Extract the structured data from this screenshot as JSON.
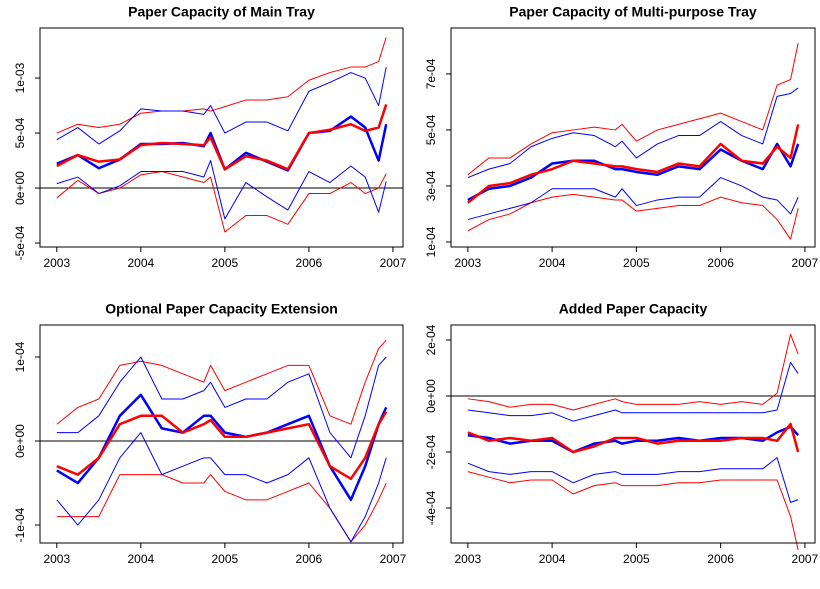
{
  "chart_data": [
    {
      "type": "line",
      "title": "Paper Capacity of Main Tray",
      "x": [
        2003,
        2003.25,
        2003.5,
        2003.75,
        2004,
        2004.25,
        2004.5,
        2004.75,
        2004.83,
        2005,
        2005.25,
        2005.5,
        2005.75,
        2006,
        2006.25,
        2006.5,
        2006.67,
        2006.83,
        2006.92
      ],
      "xlim": [
        2002.8,
        2007.12
      ],
      "xticks": [
        2003,
        2004,
        2005,
        2006,
        2007
      ],
      "ylim": [
        -0.000536,
        0.001455
      ],
      "yticks": [
        {
          "value": -0.0005,
          "label": "-5e-04"
        },
        {
          "value": 0,
          "label": "0e+00"
        },
        {
          "value": 0.0005,
          "label": "5e-04"
        },
        {
          "value": 0.001,
          "label": "1e-03"
        }
      ],
      "hline": 0,
      "series": [
        {
          "color": "#ff0000",
          "linewidth": 1,
          "values": [
            0.0005,
            0.00058,
            0.00055,
            0.00058,
            0.00068,
            0.0007,
            0.0007,
            0.00072,
            0.0007,
            0.00074,
            0.0008,
            0.0008,
            0.00083,
            0.00098,
            0.00105,
            0.0011,
            0.0011,
            0.00115,
            0.00137
          ]
        },
        {
          "color": "#ff0000",
          "linewidth": 1,
          "values": [
            -9e-05,
            7e-05,
            -5e-05,
            0,
            0.00012,
            0.00015,
            0.0001,
            5e-05,
            0.0001,
            -0.0004,
            -0.00025,
            -0.00025,
            -0.00033,
            -5e-05,
            -5e-05,
            5e-05,
            -5e-05,
            0,
            0.00013
          ]
        },
        {
          "color": "#0000ff",
          "linewidth": 1,
          "values": [
            0.00044,
            0.00055,
            0.0004,
            0.00052,
            0.00072,
            0.0007,
            0.0007,
            0.00067,
            0.00075,
            0.0005,
            0.0006,
            0.0006,
            0.00052,
            0.00088,
            0.00096,
            0.00105,
            0.001,
            0.00075,
            0.0011
          ]
        },
        {
          "color": "#0000ff",
          "linewidth": 1,
          "values": [
            4e-05,
            0.0001,
            -5e-05,
            2e-05,
            0.00015,
            0.00015,
            0.00015,
            0.0001,
            0.00025,
            -0.00028,
            5e-05,
            -8e-05,
            -0.0002,
            0.00015,
            5e-05,
            0.0002,
            0.0001,
            -0.00022,
            6e-05
          ]
        },
        {
          "color": "#0000ff",
          "linewidth": 2.5,
          "values": [
            0.00022,
            0.0003,
            0.00018,
            0.00026,
            0.0004,
            0.0004,
            0.00041,
            0.00038,
            0.0005,
            0.00017,
            0.00032,
            0.00024,
            0.00016,
            0.0005,
            0.00052,
            0.00065,
            0.00055,
            0.00025,
            0.00058
          ]
        },
        {
          "color": "#ff0000",
          "linewidth": 2.5,
          "values": [
            0.0002,
            0.0003,
            0.00024,
            0.00026,
            0.00039,
            0.00041,
            0.0004,
            0.00039,
            0.00046,
            0.00017,
            0.00029,
            0.00025,
            0.00017,
            0.0005,
            0.00053,
            0.00058,
            0.00052,
            0.00055,
            0.00076
          ]
        }
      ]
    },
    {
      "type": "line",
      "title": "Paper Capacity of Multi-purpose Tray",
      "x": [
        2003,
        2003.25,
        2003.5,
        2003.75,
        2004,
        2004.25,
        2004.5,
        2004.75,
        2004.83,
        2005,
        2005.25,
        2005.5,
        2005.75,
        2006,
        2006.25,
        2006.5,
        2006.67,
        2006.83,
        2006.92
      ],
      "xlim": [
        2002.8,
        2007.12
      ],
      "xticks": [
        2003,
        2004,
        2005,
        2006,
        2007
      ],
      "ylim": [
        8.2e-05,
        0.000864
      ],
      "yticks": [
        {
          "value": 0.0001,
          "label": "1e-04"
        },
        {
          "value": 0.0003,
          "label": "3e-04"
        },
        {
          "value": 0.0005,
          "label": "5e-04"
        },
        {
          "value": 0.0007,
          "label": "7e-04"
        }
      ],
      "series": [
        {
          "color": "#ff0000",
          "linewidth": 1,
          "values": [
            0.00034,
            0.0004,
            0.0004,
            0.00045,
            0.00049,
            0.0005,
            0.00051,
            0.0005,
            0.00052,
            0.00046,
            0.0005,
            0.00052,
            0.00054,
            0.00056,
            0.00053,
            0.0005,
            0.00066,
            0.00068,
            0.00081
          ]
        },
        {
          "color": "#ff0000",
          "linewidth": 1,
          "values": [
            0.00014,
            0.00018,
            0.0002,
            0.00024,
            0.00026,
            0.00027,
            0.00026,
            0.00025,
            0.00025,
            0.00021,
            0.00022,
            0.00023,
            0.00023,
            0.00026,
            0.00024,
            0.00023,
            0.00018,
            0.00011,
            0.00022
          ]
        },
        {
          "color": "#0000ff",
          "linewidth": 1,
          "values": [
            0.00033,
            0.00036,
            0.00038,
            0.00044,
            0.00047,
            0.00049,
            0.00048,
            0.00044,
            0.00046,
            0.0004,
            0.00045,
            0.00048,
            0.00048,
            0.00053,
            0.00048,
            0.00045,
            0.00062,
            0.00063,
            0.00065
          ]
        },
        {
          "color": "#0000ff",
          "linewidth": 1,
          "values": [
            0.00018,
            0.0002,
            0.00022,
            0.00024,
            0.00029,
            0.00029,
            0.00029,
            0.00026,
            0.00029,
            0.00023,
            0.00025,
            0.00026,
            0.00026,
            0.00033,
            0.0003,
            0.00026,
            0.00025,
            0.0002,
            0.00026
          ]
        },
        {
          "color": "#0000ff",
          "linewidth": 2.5,
          "values": [
            0.00025,
            0.00029,
            0.0003,
            0.00033,
            0.00038,
            0.00039,
            0.00039,
            0.00036,
            0.00036,
            0.00035,
            0.00034,
            0.00037,
            0.00036,
            0.00043,
            0.00039,
            0.00036,
            0.00045,
            0.00037,
            0.00045
          ]
        },
        {
          "color": "#ff0000",
          "linewidth": 2.5,
          "values": [
            0.00024,
            0.0003,
            0.00031,
            0.00034,
            0.00036,
            0.00039,
            0.00038,
            0.00037,
            0.00037,
            0.00036,
            0.00035,
            0.00038,
            0.00037,
            0.00045,
            0.00039,
            0.00038,
            0.00044,
            0.0004,
            0.00052
          ]
        }
      ]
    },
    {
      "type": "line",
      "title": "Optional Paper Capacity Extension",
      "x": [
        2003,
        2003.25,
        2003.5,
        2003.75,
        2004,
        2004.25,
        2004.5,
        2004.75,
        2004.83,
        2005,
        2005.25,
        2005.5,
        2005.75,
        2006,
        2006.25,
        2006.5,
        2006.67,
        2006.83,
        2006.92
      ],
      "xlim": [
        2002.8,
        2007.12
      ],
      "xticks": [
        2003,
        2004,
        2005,
        2006,
        2007
      ],
      "ylim": [
        -0.0001214,
        0.0001381
      ],
      "yticks": [
        {
          "value": -0.0001,
          "label": "-1e-04"
        },
        {
          "value": 0,
          "label": "0e+00"
        },
        {
          "value": 0.0001,
          "label": "1e-04"
        }
      ],
      "hline": 0,
      "series": [
        {
          "color": "#ff0000",
          "linewidth": 1,
          "values": [
            2e-05,
            4e-05,
            5e-05,
            9e-05,
            9.5e-05,
            9e-05,
            8e-05,
            7e-05,
            9e-05,
            6e-05,
            7e-05,
            8e-05,
            9e-05,
            9e-05,
            3e-05,
            2e-05,
            7e-05,
            0.00011,
            0.00012
          ]
        },
        {
          "color": "#ff0000",
          "linewidth": 1,
          "values": [
            -9e-05,
            -9e-05,
            -9e-05,
            -4e-05,
            -4e-05,
            -4e-05,
            -5e-05,
            -5e-05,
            -4e-05,
            -6e-05,
            -7e-05,
            -7e-05,
            -6e-05,
            -5e-05,
            -8e-05,
            -0.00012,
            -0.0001,
            -7e-05,
            -5e-05
          ]
        },
        {
          "color": "#0000ff",
          "linewidth": 1,
          "values": [
            1e-05,
            1e-05,
            3e-05,
            7e-05,
            0.0001,
            5e-05,
            5e-05,
            6e-05,
            7e-05,
            4e-05,
            5e-05,
            5e-05,
            7e-05,
            8e-05,
            1e-05,
            -2e-05,
            3e-05,
            9e-05,
            0.0001
          ]
        },
        {
          "color": "#0000ff",
          "linewidth": 1,
          "values": [
            -7e-05,
            -0.0001,
            -7e-05,
            -2e-05,
            1e-05,
            -4e-05,
            -3e-05,
            -2e-05,
            -2e-05,
            -4e-05,
            -4e-05,
            -5e-05,
            -4e-05,
            -2e-05,
            -8e-05,
            -0.00012,
            -9e-05,
            -5e-05,
            -2e-05
          ]
        },
        {
          "color": "#0000ff",
          "linewidth": 2.5,
          "values": [
            -3.5e-05,
            -5e-05,
            -2e-05,
            3e-05,
            5.5e-05,
            1.5e-05,
            1e-05,
            3e-05,
            3e-05,
            1e-05,
            5e-06,
            1e-05,
            2e-05,
            3e-05,
            -3e-05,
            -7e-05,
            -3e-05,
            2e-05,
            4e-05
          ]
        },
        {
          "color": "#ff0000",
          "linewidth": 2.5,
          "values": [
            -3e-05,
            -4e-05,
            -2e-05,
            2e-05,
            3e-05,
            3e-05,
            1e-05,
            2e-05,
            2.5e-05,
            5e-06,
            5e-06,
            1e-05,
            1.5e-05,
            2e-05,
            -3e-05,
            -4.5e-05,
            -2e-05,
            2e-05,
            3.5e-05
          ]
        }
      ]
    },
    {
      "type": "line",
      "title": "Added Paper Capacity",
      "x": [
        2003,
        2003.25,
        2003.5,
        2003.75,
        2004,
        2004.25,
        2004.5,
        2004.75,
        2004.83,
        2005,
        2005.25,
        2005.5,
        2005.75,
        2006,
        2006.25,
        2006.5,
        2006.67,
        2006.83,
        2006.92
      ],
      "xlim": [
        2002.8,
        2007.12
      ],
      "xticks": [
        2003,
        2004,
        2005,
        2006,
        2007
      ],
      "ylim": [
        -0.000525,
        0.0002536
      ],
      "yticks": [
        {
          "value": -0.0004,
          "label": "-4e-04"
        },
        {
          "value": -0.0002,
          "label": "-2e-04"
        },
        {
          "value": 0,
          "label": "0e+00"
        },
        {
          "value": 0.0002,
          "label": "2e-04"
        }
      ],
      "hline": 0,
      "series": [
        {
          "color": "#ff0000",
          "linewidth": 1,
          "values": [
            -1e-05,
            -2e-05,
            -4e-05,
            -3e-05,
            -3e-05,
            -5e-05,
            -3e-05,
            -1e-05,
            -2e-05,
            -3e-05,
            -3e-05,
            -3e-05,
            -2e-05,
            -3e-05,
            -2e-05,
            -3e-05,
            1e-05,
            0.00022,
            0.00015
          ]
        },
        {
          "color": "#ff0000",
          "linewidth": 1,
          "values": [
            -0.00027,
            -0.00029,
            -0.00031,
            -0.0003,
            -0.0003,
            -0.00035,
            -0.00032,
            -0.00031,
            -0.00032,
            -0.00032,
            -0.00032,
            -0.00031,
            -0.00031,
            -0.0003,
            -0.0003,
            -0.0003,
            -0.0003,
            -0.00043,
            -0.00055
          ]
        },
        {
          "color": "#0000ff",
          "linewidth": 1,
          "values": [
            -5e-05,
            -6e-05,
            -7e-05,
            -7e-05,
            -6e-05,
            -9e-05,
            -7e-05,
            -5e-05,
            -6e-05,
            -6e-05,
            -6e-05,
            -6e-05,
            -6e-05,
            -6e-05,
            -6e-05,
            -6e-05,
            -5e-05,
            0.00012,
            8e-05
          ]
        },
        {
          "color": "#0000ff",
          "linewidth": 1,
          "values": [
            -0.00024,
            -0.00027,
            -0.00028,
            -0.00027,
            -0.00027,
            -0.00031,
            -0.00028,
            -0.00027,
            -0.00028,
            -0.00028,
            -0.00028,
            -0.00027,
            -0.00027,
            -0.00026,
            -0.00026,
            -0.00026,
            -0.00022,
            -0.00038,
            -0.00037
          ]
        },
        {
          "color": "#0000ff",
          "linewidth": 2.5,
          "values": [
            -0.00014,
            -0.00015,
            -0.00017,
            -0.00016,
            -0.00016,
            -0.0002,
            -0.00017,
            -0.00016,
            -0.00017,
            -0.00016,
            -0.00016,
            -0.00015,
            -0.00016,
            -0.00015,
            -0.00015,
            -0.00016,
            -0.00013,
            -0.00011,
            -0.00014
          ]
        },
        {
          "color": "#ff0000",
          "linewidth": 2.5,
          "values": [
            -0.00013,
            -0.00016,
            -0.00015,
            -0.00016,
            -0.00015,
            -0.0002,
            -0.00018,
            -0.00015,
            -0.00015,
            -0.00015,
            -0.00017,
            -0.00016,
            -0.00016,
            -0.00016,
            -0.00015,
            -0.00015,
            -0.00016,
            -0.0001,
            -0.0002
          ]
        }
      ]
    }
  ]
}
